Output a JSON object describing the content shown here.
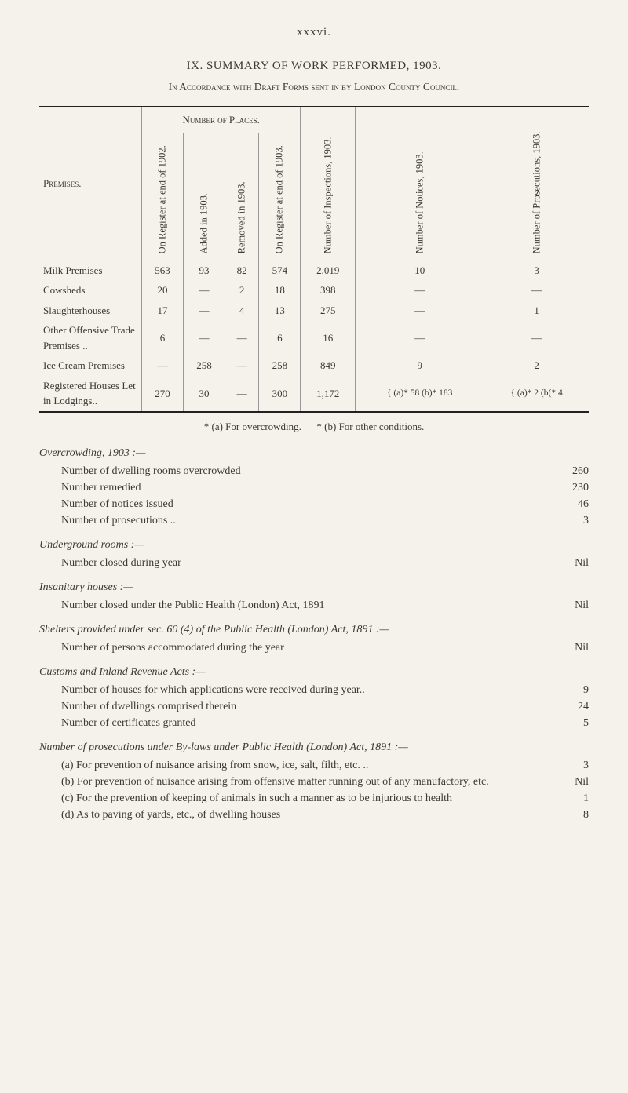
{
  "page_number": "xxxvi.",
  "section_title": "IX.   SUMMARY OF WORK PERFORMED, 1903.",
  "subtitle": "In Accordance with Draft Forms sent in by London County Council.",
  "table": {
    "group_header": "Number of Places.",
    "premises_label": "Premises.",
    "col_headers": [
      "On Register at end of 1902.",
      "Added in 1903.",
      "Removed in 1903.",
      "On Register at end of 1903.",
      "Number of Inspections, 1903.",
      "Number of Notices, 1903.",
      "Number of Prosecutions, 1903."
    ],
    "rows": [
      {
        "label": "Milk Premises",
        "c": [
          "563",
          "93",
          "82",
          "574",
          "2,019",
          "10",
          "3"
        ]
      },
      {
        "label": "Cowsheds",
        "c": [
          "20",
          "—",
          "2",
          "18",
          "398",
          "—",
          "—"
        ]
      },
      {
        "label": "Slaughterhouses",
        "c": [
          "17",
          "—",
          "4",
          "13",
          "275",
          "—",
          "1"
        ]
      },
      {
        "label": "Other Offensive Trade Premises ..",
        "c": [
          "6",
          "—",
          "—",
          "6",
          "16",
          "—",
          "—"
        ]
      },
      {
        "label": "Ice Cream Premises",
        "c": [
          "—",
          "258",
          "—",
          "258",
          "849",
          "9",
          "2"
        ]
      },
      {
        "label": "Registered Houses Let in Lodgings..",
        "c": [
          "270",
          "30",
          "—",
          "300",
          "1,172",
          "{ (a)* 58  (b)* 183",
          "{ (a)* 2  (b(* 4"
        ]
      }
    ],
    "footnote_a": "* (a) For overcrowding.",
    "footnote_b": "* (b) For other conditions."
  },
  "lists": {
    "overcrowding_head": "Overcrowding, 1903 :—",
    "overcrowding": [
      {
        "t": "Number of dwelling rooms overcrowded",
        "v": "260"
      },
      {
        "t": "Number remedied",
        "v": "230"
      },
      {
        "t": "Number of notices issued",
        "v": "46"
      },
      {
        "t": "Number of prosecutions ..",
        "v": "3"
      }
    ],
    "underground_head": "Underground rooms :—",
    "underground": [
      {
        "t": "Number closed during year",
        "v": "Nil"
      }
    ],
    "insanitary_head": "Insanitary houses :—",
    "insanitary": [
      {
        "t": "Number closed under the Public Health (London) Act, 1891",
        "v": "Nil"
      }
    ],
    "shelters_head": "Shelters provided under sec. 60 (4) of the Public Health (London) Act, 1891 :—",
    "shelters": [
      {
        "t": "Number of persons accommodated during the year",
        "v": "Nil"
      }
    ],
    "customs_head": "Customs and Inland Revenue Acts :—",
    "customs": [
      {
        "t": "Number of houses for which applications were received during year..",
        "v": "9"
      },
      {
        "t": "Number of dwellings comprised therein",
        "v": "24"
      },
      {
        "t": "Number of certificates granted",
        "v": "5"
      }
    ],
    "bylaws_head": "Number of prosecutions under By-laws under Public Health (London) Act, 1891 :—",
    "bylaws": [
      {
        "t": "(a) For prevention of nuisance arising from snow, ice, salt, filth, etc.  ..",
        "v": "3"
      },
      {
        "t": "(b) For prevention of nuisance arising from offensive matter running out of any manufactory, etc.",
        "v": "Nil"
      },
      {
        "t": "(c) For the prevention of keeping of animals in such a manner as to be injurious to health",
        "v": "1"
      },
      {
        "t": "(d) As to paving of yards, etc., of dwelling houses",
        "v": "8"
      }
    ]
  }
}
